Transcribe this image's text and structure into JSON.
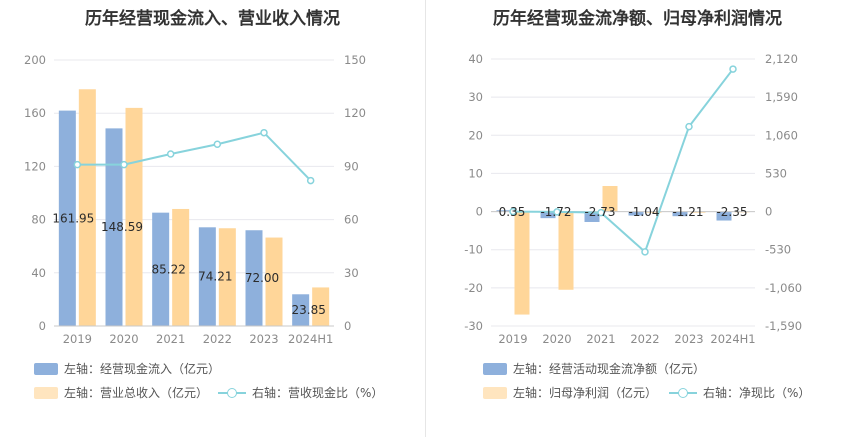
{
  "colors": {
    "bar_primary": "#8eb0dc",
    "bar_secondary": "#ffd699",
    "line": "#87d3dc",
    "grid": "#e8e8ee",
    "divider": "#e6e6e6"
  },
  "chart_data": [
    {
      "type": "bar",
      "title": "历年经营现金流入、营业收入情况",
      "categories": [
        "2019",
        "2020",
        "2021",
        "2022",
        "2023",
        "2024H1"
      ],
      "left_axis": {
        "ticks": [
          "200",
          "160",
          "120",
          "80",
          "40",
          "0"
        ],
        "ylim": [
          0,
          200
        ]
      },
      "right_axis": {
        "ticks": [
          "150",
          "120",
          "90",
          "60",
          "30",
          "0"
        ],
        "ylim": [
          0,
          150
        ]
      },
      "series": [
        {
          "name": "左轴：经营现金流入（亿元）",
          "type": "bar",
          "axis": "left",
          "values": [
            161.95,
            148.59,
            85.22,
            74.21,
            72.0,
            23.85
          ],
          "labels": [
            "161.95",
            "148.59",
            "85.22",
            "74.21",
            "72.00",
            "23.85"
          ]
        },
        {
          "name": "左轴：营业总收入（亿元）",
          "type": "bar",
          "axis": "left",
          "values": [
            178,
            164,
            88,
            73.5,
            66.5,
            29
          ]
        },
        {
          "name": "右轴：营收现金比（%）",
          "type": "line",
          "axis": "right",
          "values": [
            91,
            91,
            97,
            102.5,
            109,
            82
          ]
        }
      ]
    },
    {
      "type": "bar",
      "title": "历年经营现金流净额、归母净利润情况",
      "categories": [
        "2019",
        "2020",
        "2021",
        "2022",
        "2023",
        "2024H1"
      ],
      "left_axis": {
        "ticks": [
          "40",
          "30",
          "20",
          "10",
          "0",
          "-10",
          "-20",
          "-30"
        ],
        "ylim": [
          -30,
          40
        ]
      },
      "right_axis": {
        "ticks": [
          "2,120",
          "1,590",
          "1,060",
          "530",
          "0",
          "-530",
          "-1,060",
          "-1,590"
        ],
        "ylim": [
          -1590,
          2120
        ]
      },
      "series": [
        {
          "name": "左轴：经营活动现金流净额（亿元）",
          "type": "bar",
          "axis": "left",
          "values": [
            0.35,
            -1.72,
            -2.73,
            -1.04,
            -1.21,
            -2.35
          ],
          "labels": [
            "0.35",
            "-1.72",
            "-2.73",
            "-1.04",
            "-1.21",
            "-2.35"
          ]
        },
        {
          "name": "左轴：归母净利润（亿元）",
          "type": "bar",
          "axis": "left",
          "values": [
            -27,
            -20.5,
            6.7,
            -0.3,
            -0.3,
            -0.2
          ]
        },
        {
          "name": "右轴：净现比（%）",
          "type": "line",
          "axis": "right",
          "values": [
            0,
            -5,
            -15,
            -560,
            1180,
            1980
          ]
        }
      ]
    }
  ]
}
